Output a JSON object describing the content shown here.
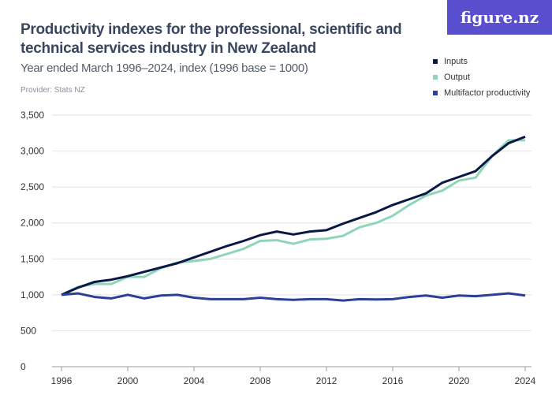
{
  "title": "Productivity indexes for the professional, scientific and technical services industry in New Zealand",
  "subtitle": "Year ended March 1996–2024, index (1996 base = 1000)",
  "provider": "Provider: Stats NZ",
  "logo": "figure.nz",
  "colors": {
    "inputs": "#0b1846",
    "output": "#8fd5b8",
    "multifactor": "#2b3f99",
    "logo": "#5a4fcf"
  },
  "chart_data": {
    "type": "line",
    "x": [
      1996,
      1997,
      1998,
      1999,
      2000,
      2001,
      2002,
      2003,
      2004,
      2005,
      2006,
      2007,
      2008,
      2009,
      2010,
      2011,
      2012,
      2013,
      2014,
      2015,
      2016,
      2017,
      2018,
      2019,
      2020,
      2021,
      2022,
      2023,
      2024
    ],
    "series": [
      {
        "name": "Inputs",
        "values": [
          1000,
          1100,
          1180,
          1210,
          1260,
          1320,
          1380,
          1440,
          1520,
          1600,
          1680,
          1750,
          1830,
          1880,
          1840,
          1880,
          1900,
          1990,
          2070,
          2150,
          2250,
          2330,
          2410,
          2560,
          2640,
          2720,
          2930,
          3110,
          3200
        ]
      },
      {
        "name": "Output",
        "values": [
          1000,
          1110,
          1150,
          1150,
          1250,
          1250,
          1370,
          1450,
          1470,
          1500,
          1570,
          1640,
          1750,
          1760,
          1710,
          1770,
          1780,
          1820,
          1940,
          2000,
          2100,
          2250,
          2380,
          2450,
          2590,
          2630,
          2930,
          3150,
          3150
        ]
      },
      {
        "name": "Multifactor productivity",
        "values": [
          1000,
          1020,
          970,
          950,
          1000,
          950,
          990,
          1000,
          960,
          940,
          940,
          940,
          960,
          940,
          930,
          940,
          940,
          920,
          940,
          935,
          940,
          970,
          990,
          960,
          990,
          980,
          1000,
          1020,
          990
        ]
      }
    ],
    "ylim": [
      0,
      3500
    ],
    "yticks": [
      0,
      500,
      1000,
      1500,
      2000,
      2500,
      3000,
      3500
    ],
    "ytick_labels": [
      "0",
      "500",
      "1,000",
      "1,500",
      "2,000",
      "2,500",
      "3,000",
      "3,500"
    ],
    "xticks": [
      1996,
      2000,
      2004,
      2008,
      2012,
      2016,
      2020,
      2024
    ],
    "xtick_labels": [
      "1996",
      "2000",
      "2004",
      "2008",
      "2012",
      "2016",
      "2020",
      "2024"
    ],
    "grid": true,
    "legend": "top-right"
  }
}
